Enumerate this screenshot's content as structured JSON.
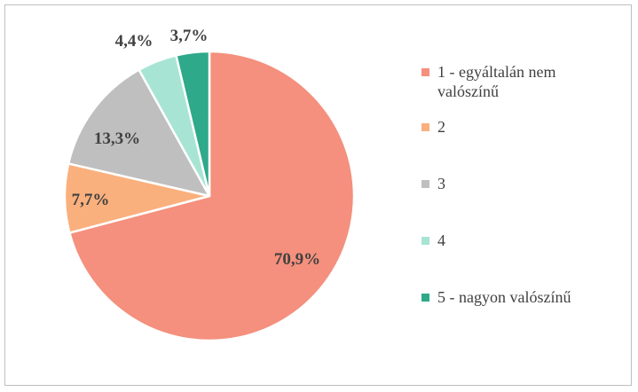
{
  "chart_data": {
    "type": "pie",
    "slices": [
      {
        "label": "1 - egyáltalán nem valószínű",
        "value": 70.9,
        "display": "70,9%",
        "color": "#F4907D"
      },
      {
        "label": "2",
        "value": 7.7,
        "display": "7,7%",
        "color": "#FAB07D"
      },
      {
        "label": "3",
        "value": 13.3,
        "display": "13,3%",
        "color": "#BFBFBF"
      },
      {
        "label": "4",
        "value": 4.4,
        "display": "4,4%",
        "color": "#A8E4D4"
      },
      {
        "label": "5 - nagyon valószínű",
        "value": 3.7,
        "display": "3,7%",
        "color": "#2EA98A"
      }
    ],
    "start_angle": "12 o'clock",
    "direction": "clockwise",
    "legend_position": "right"
  }
}
